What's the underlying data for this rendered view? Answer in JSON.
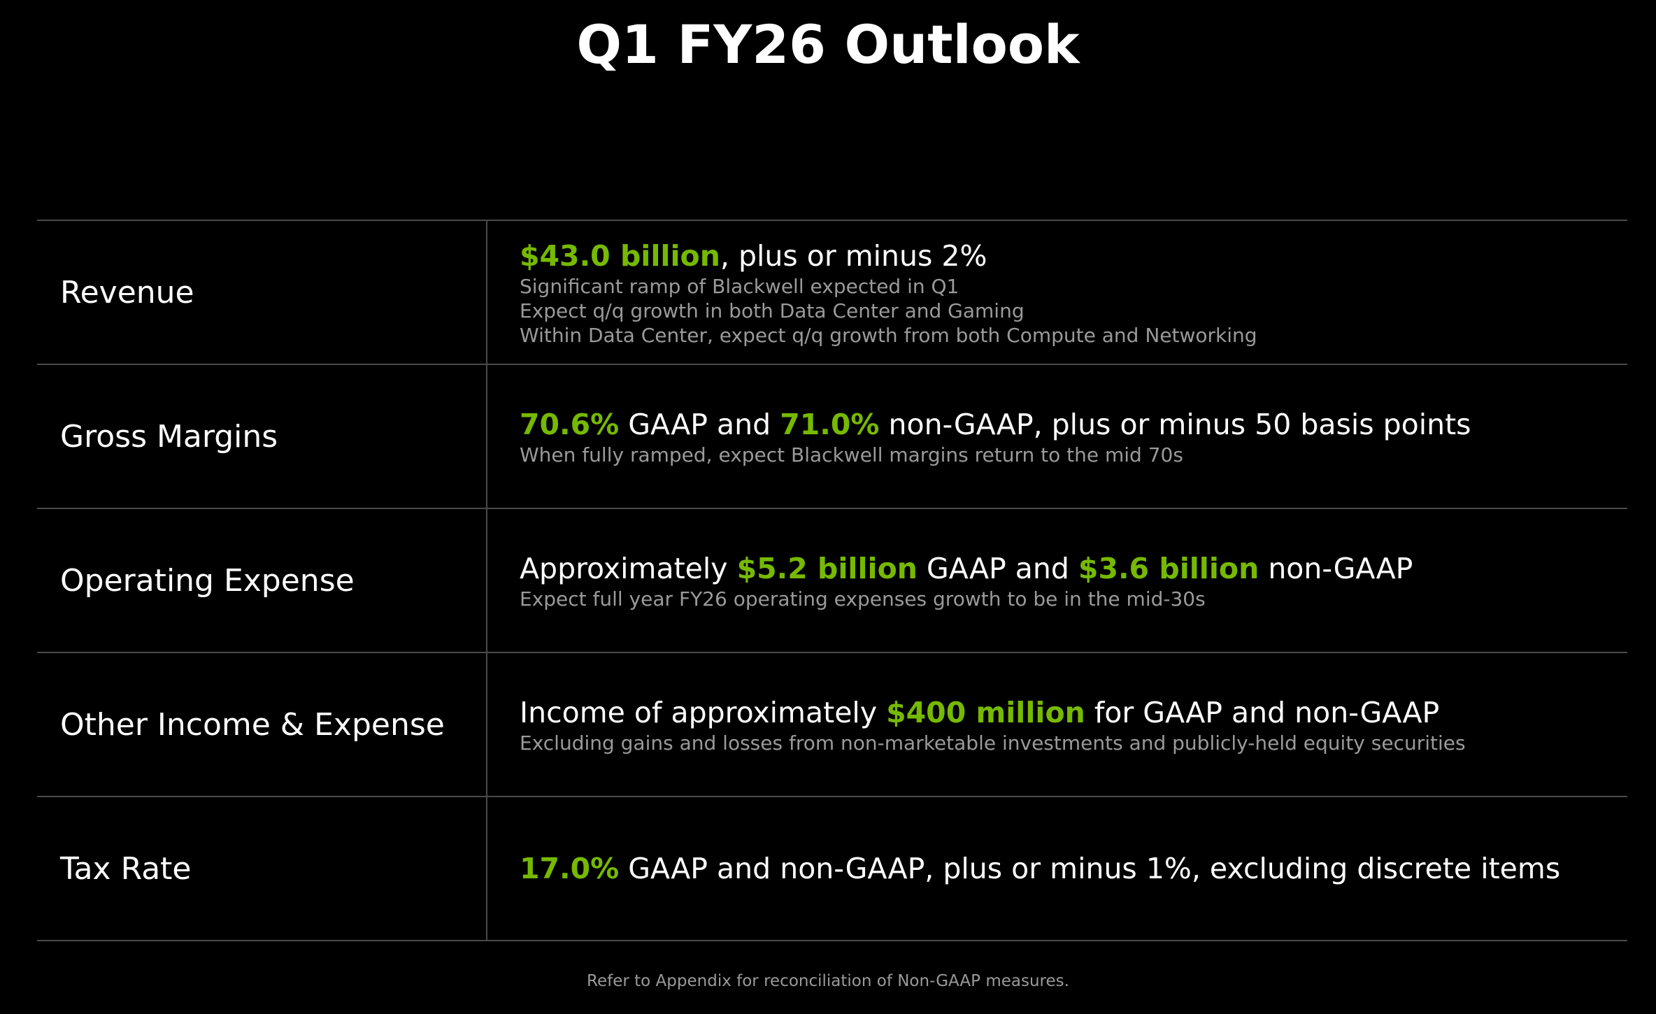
{
  "title": "Q1 FY26 Outlook",
  "colors": {
    "background": "#000000",
    "accent_green": "#76b900",
    "text_primary": "#ffffff",
    "text_secondary": "#9a9a9a",
    "divider": "#4a4a4a"
  },
  "rows": [
    {
      "label": "Revenue",
      "headline": {
        "part1": "",
        "highlight1": "$43.0 billion",
        "part2": ", plus or minus 2%",
        "highlight2": "",
        "part3": ""
      },
      "notes": [
        "Significant ramp of Blackwell expected in Q1",
        "Expect q/q growth in both Data Center and Gaming",
        "Within Data Center, expect q/q growth from both Compute and Networking"
      ]
    },
    {
      "label": "Gross Margins",
      "headline": {
        "part1": "",
        "highlight1": "70.6%",
        "part2": " GAAP and ",
        "highlight2": "71.0%",
        "part3": " non-GAAP, plus or minus 50 basis points"
      },
      "notes": [
        "When fully ramped, expect Blackwell margins return to the mid 70s"
      ]
    },
    {
      "label": "Operating Expense",
      "headline": {
        "part1": "Approximately ",
        "highlight1": "$5.2 billion",
        "part2": " GAAP and ",
        "highlight2": "$3.6 billion",
        "part3": " non-GAAP"
      },
      "notes": [
        "Expect full year FY26 operating expenses growth to be in the mid-30s"
      ]
    },
    {
      "label": "Other Income & Expense",
      "headline": {
        "part1": "Income of approximately ",
        "highlight1": "$400 million",
        "part2": " for GAAP and non-GAAP",
        "highlight2": "",
        "part3": ""
      },
      "notes": [
        "Excluding gains and losses from non-marketable investments and publicly-held equity securities"
      ]
    },
    {
      "label": "Tax Rate",
      "headline": {
        "part1": "",
        "highlight1": "17.0%",
        "part2": " GAAP and non-GAAP, plus or minus 1%, excluding discrete items",
        "highlight2": "",
        "part3": ""
      },
      "notes": []
    }
  ],
  "footnote": "Refer to Appendix for reconciliation of Non-GAAP measures."
}
